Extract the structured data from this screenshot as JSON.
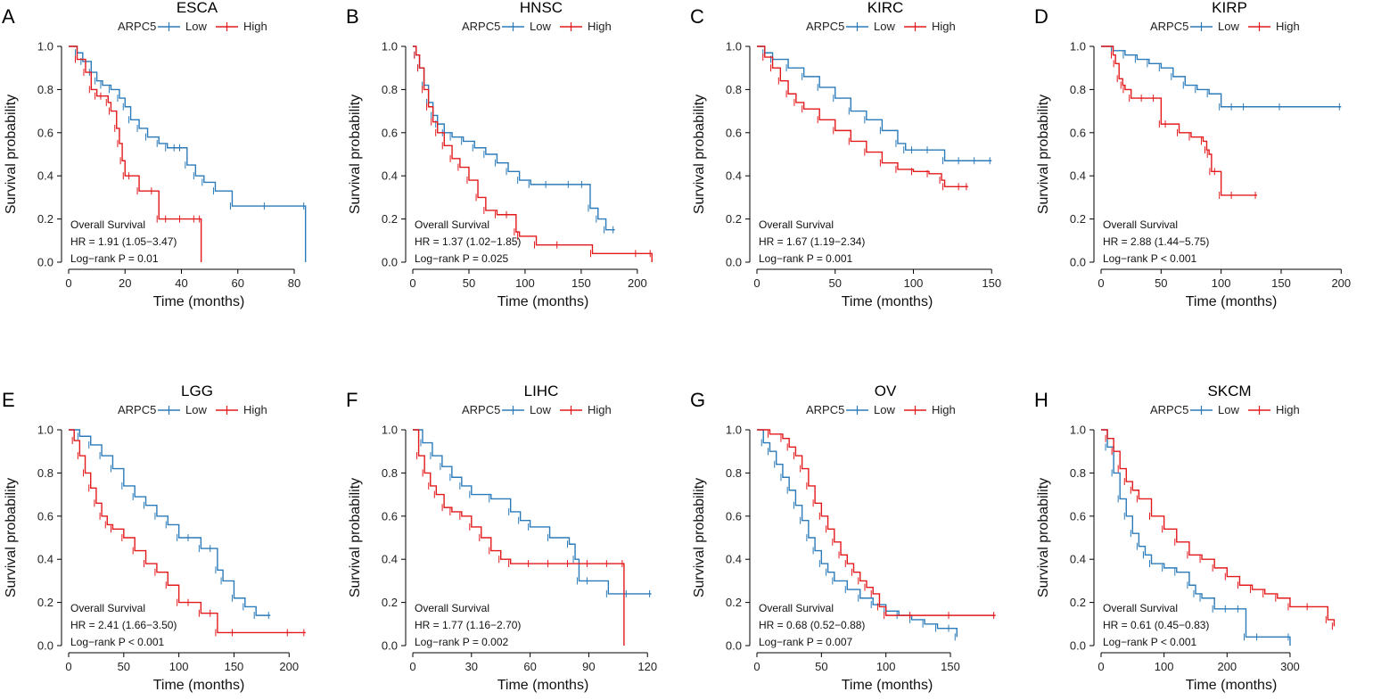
{
  "colors": {
    "low": "#2b7bba",
    "high": "#e31a1c"
  },
  "legend": {
    "gene": "ARPC5",
    "low": "Low",
    "high": "High"
  },
  "annotation_title": "Overall Survival",
  "chart_data": [
    {
      "panel": "A",
      "title": "ESCA",
      "type": "line",
      "xlabel": "Time (months)",
      "ylabel": "Survival probability",
      "xlim": [
        0,
        86
      ],
      "ylim": [
        0,
        1
      ],
      "xticks": [
        "0",
        "20",
        "40",
        "60",
        "80"
      ],
      "xtick_values": [
        0,
        20,
        40,
        60,
        80
      ],
      "yticks": [
        "0.0",
        "0.2",
        "0.4",
        "0.6",
        "0.8",
        "1.0"
      ],
      "ytick_values": [
        0,
        0.2,
        0.4,
        0.6,
        0.8,
        1.0
      ],
      "hr": "HR = 1.91 (1.05−3.47)",
      "pval": "Log−rank P = 0.01",
      "series": [
        {
          "name": "Low",
          "key": "low",
          "x": [
            0,
            3,
            5,
            8,
            10,
            12,
            15,
            18,
            20,
            22,
            25,
            28,
            32,
            35,
            38,
            40,
            42,
            45,
            48,
            52,
            58,
            70,
            84,
            84
          ],
          "y": [
            1.0,
            0.97,
            0.93,
            0.88,
            0.84,
            0.82,
            0.8,
            0.76,
            0.72,
            0.66,
            0.62,
            0.58,
            0.55,
            0.53,
            0.53,
            0.53,
            0.45,
            0.4,
            0.37,
            0.33,
            0.26,
            0.26,
            0.26,
            0.0
          ]
        },
        {
          "name": "High",
          "key": "high",
          "x": [
            0,
            3,
            6,
            8,
            10,
            12,
            14,
            15,
            17,
            18,
            19,
            20,
            22,
            25,
            30,
            32,
            35,
            40,
            45,
            47,
            47
          ],
          "y": [
            1.0,
            0.94,
            0.88,
            0.8,
            0.77,
            0.77,
            0.74,
            0.7,
            0.62,
            0.55,
            0.47,
            0.4,
            0.4,
            0.33,
            0.33,
            0.2,
            0.2,
            0.2,
            0.2,
            0.2,
            0.0
          ]
        }
      ]
    },
    {
      "panel": "B",
      "title": "HNSC",
      "type": "line",
      "xlabel": "Time (months)",
      "ylabel": "Survival probability",
      "xlim": [
        0,
        216
      ],
      "ylim": [
        0,
        1
      ],
      "xticks": [
        "0",
        "50",
        "100",
        "150",
        "200"
      ],
      "xtick_values": [
        0,
        50,
        100,
        150,
        200
      ],
      "yticks": [
        "0.0",
        "0.2",
        "0.4",
        "0.6",
        "0.8",
        "1.0"
      ],
      "ytick_values": [
        0,
        0.2,
        0.4,
        0.6,
        0.8,
        1.0
      ],
      "hr": "HR = 1.37 (1.02−1.85)",
      "pval": "Log−rank P = 0.025",
      "series": [
        {
          "name": "Low",
          "key": "low",
          "x": [
            0,
            3,
            6,
            10,
            14,
            18,
            22,
            28,
            35,
            45,
            55,
            65,
            75,
            85,
            95,
            105,
            120,
            140,
            152,
            158,
            165,
            172,
            180
          ],
          "y": [
            1.0,
            0.96,
            0.9,
            0.82,
            0.74,
            0.68,
            0.64,
            0.6,
            0.58,
            0.56,
            0.53,
            0.5,
            0.46,
            0.42,
            0.38,
            0.36,
            0.36,
            0.36,
            0.36,
            0.25,
            0.2,
            0.15,
            0.15
          ]
        },
        {
          "name": "High",
          "key": "high",
          "x": [
            0,
            3,
            6,
            10,
            14,
            18,
            22,
            28,
            35,
            42,
            50,
            58,
            65,
            75,
            85,
            92,
            95,
            110,
            130,
            160,
            200,
            213,
            213
          ],
          "y": [
            1.0,
            0.96,
            0.9,
            0.8,
            0.72,
            0.65,
            0.6,
            0.54,
            0.48,
            0.44,
            0.38,
            0.3,
            0.24,
            0.22,
            0.22,
            0.14,
            0.12,
            0.08,
            0.08,
            0.04,
            0.04,
            0.04,
            0.0
          ]
        }
      ]
    },
    {
      "panel": "C",
      "title": "KIRC",
      "type": "line",
      "xlabel": "Time (months)",
      "ylabel": "Survival probability",
      "xlim": [
        0,
        155
      ],
      "ylim": [
        0,
        1
      ],
      "xticks": [
        "0",
        "50",
        "100",
        "150"
      ],
      "xtick_values": [
        0,
        50,
        100,
        150
      ],
      "yticks": [
        "0.0",
        "0.2",
        "0.4",
        "0.6",
        "0.8",
        "1.0"
      ],
      "ytick_values": [
        0,
        0.2,
        0.4,
        0.6,
        0.8,
        1.0
      ],
      "hr": "HR = 1.67 (1.19−2.34)",
      "pval": "Log−rank P = 0.001",
      "series": [
        {
          "name": "Low",
          "key": "low",
          "x": [
            0,
            5,
            10,
            20,
            30,
            40,
            50,
            60,
            70,
            80,
            90,
            95,
            100,
            110,
            120,
            130,
            140,
            150
          ],
          "y": [
            1.0,
            0.97,
            0.94,
            0.9,
            0.86,
            0.81,
            0.76,
            0.7,
            0.66,
            0.61,
            0.55,
            0.52,
            0.52,
            0.52,
            0.47,
            0.47,
            0.47,
            0.47
          ]
        },
        {
          "name": "High",
          "key": "high",
          "x": [
            0,
            5,
            10,
            15,
            20,
            25,
            30,
            40,
            50,
            60,
            70,
            80,
            90,
            100,
            110,
            118,
            120,
            130,
            135
          ],
          "y": [
            1.0,
            0.95,
            0.9,
            0.84,
            0.78,
            0.74,
            0.71,
            0.66,
            0.61,
            0.56,
            0.51,
            0.46,
            0.43,
            0.42,
            0.41,
            0.38,
            0.35,
            0.35,
            0.35
          ]
        }
      ]
    },
    {
      "panel": "D",
      "title": "KIRP",
      "type": "line",
      "xlabel": "Time (months)",
      "ylabel": "Survival probability",
      "xlim": [
        0,
        202
      ],
      "ylim": [
        0,
        1
      ],
      "xticks": [
        "0",
        "50",
        "100",
        "150",
        "200"
      ],
      "xtick_values": [
        0,
        50,
        100,
        150,
        200
      ],
      "yticks": [
        "0.0",
        "0.2",
        "0.4",
        "0.6",
        "0.8",
        "1.0"
      ],
      "ytick_values": [
        0,
        0.2,
        0.4,
        0.6,
        0.8,
        1.0
      ],
      "hr": "HR = 2.88 (1.44−5.75)",
      "pval": "Log−rank P < 0.001",
      "series": [
        {
          "name": "Low",
          "key": "low",
          "x": [
            0,
            10,
            20,
            30,
            40,
            50,
            60,
            70,
            80,
            90,
            100,
            110,
            120,
            150,
            200
          ],
          "y": [
            1.0,
            0.98,
            0.96,
            0.94,
            0.92,
            0.9,
            0.86,
            0.82,
            0.8,
            0.78,
            0.72,
            0.72,
            0.72,
            0.72,
            0.72
          ]
        },
        {
          "name": "High",
          "key": "high",
          "x": [
            0,
            10,
            12,
            15,
            18,
            20,
            25,
            35,
            45,
            50,
            55,
            65,
            75,
            85,
            88,
            90,
            92,
            96,
            100,
            110,
            130
          ],
          "y": [
            1.0,
            0.96,
            0.92,
            0.85,
            0.82,
            0.8,
            0.76,
            0.76,
            0.76,
            0.64,
            0.64,
            0.6,
            0.58,
            0.56,
            0.52,
            0.5,
            0.42,
            0.42,
            0.31,
            0.31,
            0.31
          ]
        }
      ]
    },
    {
      "panel": "E",
      "title": "LGG",
      "type": "line",
      "xlabel": "Time (months)",
      "ylabel": "Survival probability",
      "xlim": [
        0,
        220
      ],
      "ylim": [
        0,
        1
      ],
      "xticks": [
        "0",
        "50",
        "100",
        "150",
        "200"
      ],
      "xtick_values": [
        0,
        50,
        100,
        150,
        200
      ],
      "yticks": [
        "0.0",
        "0.2",
        "0.4",
        "0.6",
        "0.8",
        "1.0"
      ],
      "ytick_values": [
        0,
        0.2,
        0.4,
        0.6,
        0.8,
        1.0
      ],
      "hr": "HR = 2.41 (1.66−3.50)",
      "pval": "Log−rank P < 0.001",
      "series": [
        {
          "name": "Low",
          "key": "low",
          "x": [
            0,
            10,
            20,
            30,
            40,
            50,
            60,
            70,
            80,
            90,
            100,
            110,
            120,
            130,
            135,
            140,
            150,
            160,
            170,
            183
          ],
          "y": [
            1.0,
            0.97,
            0.93,
            0.88,
            0.82,
            0.74,
            0.69,
            0.65,
            0.6,
            0.56,
            0.5,
            0.5,
            0.45,
            0.45,
            0.35,
            0.3,
            0.22,
            0.18,
            0.14,
            0.14
          ]
        },
        {
          "name": "High",
          "key": "high",
          "x": [
            0,
            5,
            10,
            15,
            20,
            25,
            30,
            35,
            40,
            50,
            60,
            70,
            80,
            90,
            100,
            110,
            120,
            130,
            135,
            150,
            200,
            215
          ],
          "y": [
            1.0,
            0.95,
            0.88,
            0.8,
            0.73,
            0.66,
            0.6,
            0.56,
            0.54,
            0.5,
            0.44,
            0.38,
            0.34,
            0.28,
            0.2,
            0.2,
            0.15,
            0.15,
            0.06,
            0.06,
            0.06,
            0.06
          ]
        }
      ]
    },
    {
      "panel": "F",
      "title": "LIHC",
      "type": "line",
      "xlabel": "Time (months)",
      "ylabel": "Survival probability",
      "xlim": [
        0,
        124
      ],
      "ylim": [
        0,
        1
      ],
      "xticks": [
        "0",
        "30",
        "60",
        "90",
        "120"
      ],
      "xtick_values": [
        0,
        30,
        60,
        90,
        120
      ],
      "yticks": [
        "0.0",
        "0.2",
        "0.4",
        "0.6",
        "0.8",
        "1.0"
      ],
      "ytick_values": [
        0,
        0.2,
        0.4,
        0.6,
        0.8,
        1.0
      ],
      "hr": "HR = 1.77 (1.16−2.70)",
      "pval": "Log−rank P = 0.002",
      "series": [
        {
          "name": "Low",
          "key": "low",
          "x": [
            0,
            5,
            10,
            15,
            20,
            25,
            30,
            40,
            50,
            55,
            60,
            70,
            80,
            83,
            85,
            90,
            100,
            110,
            122
          ],
          "y": [
            1.0,
            0.94,
            0.88,
            0.83,
            0.78,
            0.74,
            0.7,
            0.68,
            0.62,
            0.58,
            0.55,
            0.5,
            0.47,
            0.4,
            0.3,
            0.3,
            0.24,
            0.24,
            0.24
          ]
        },
        {
          "name": "High",
          "key": "high",
          "x": [
            0,
            3,
            6,
            9,
            12,
            16,
            20,
            25,
            30,
            35,
            40,
            45,
            50,
            60,
            70,
            80,
            90,
            100,
            108,
            108
          ],
          "y": [
            1.0,
            0.88,
            0.8,
            0.74,
            0.7,
            0.64,
            0.62,
            0.6,
            0.55,
            0.5,
            0.44,
            0.4,
            0.38,
            0.38,
            0.38,
            0.38,
            0.38,
            0.38,
            0.38,
            0.0
          ]
        }
      ]
    },
    {
      "panel": "G",
      "title": "OV",
      "type": "line",
      "xlabel": "Time (months)",
      "ylabel": "Survival probability",
      "xlim": [
        0,
        188
      ],
      "ylim": [
        0,
        1
      ],
      "xticks": [
        "0",
        "50",
        "100",
        "150"
      ],
      "xtick_values": [
        0,
        50,
        100,
        150
      ],
      "yticks": [
        "0.0",
        "0.2",
        "0.4",
        "0.6",
        "0.8",
        "1.0"
      ],
      "ytick_values": [
        0,
        0.2,
        0.4,
        0.6,
        0.8,
        1.0
      ],
      "hr": "HR = 0.68 (0.52−0.88)",
      "pval": "Log−rank P = 0.007",
      "series": [
        {
          "name": "Low",
          "key": "low",
          "x": [
            0,
            5,
            10,
            15,
            20,
            25,
            30,
            35,
            40,
            45,
            50,
            55,
            60,
            70,
            80,
            90,
            100,
            110,
            120,
            130,
            140,
            150,
            155
          ],
          "y": [
            1.0,
            0.94,
            0.9,
            0.84,
            0.78,
            0.72,
            0.65,
            0.58,
            0.5,
            0.44,
            0.38,
            0.34,
            0.3,
            0.26,
            0.22,
            0.19,
            0.16,
            0.14,
            0.12,
            0.1,
            0.08,
            0.08,
            0.04
          ]
        },
        {
          "name": "High",
          "key": "high",
          "x": [
            0,
            10,
            20,
            25,
            30,
            35,
            40,
            45,
            50,
            55,
            60,
            65,
            70,
            75,
            80,
            85,
            90,
            95,
            100,
            120,
            150,
            185
          ],
          "y": [
            1.0,
            0.98,
            0.96,
            0.92,
            0.88,
            0.82,
            0.74,
            0.66,
            0.6,
            0.54,
            0.48,
            0.42,
            0.38,
            0.34,
            0.3,
            0.27,
            0.24,
            0.18,
            0.14,
            0.14,
            0.14,
            0.14
          ]
        }
      ]
    },
    {
      "panel": "H",
      "title": "SKCM",
      "type": "line",
      "xlabel": "Time (months)",
      "ylabel": "Survival probability",
      "xlim": [
        0,
        385
      ],
      "ylim": [
        0,
        1
      ],
      "xticks": [
        "0",
        "100",
        "200",
        "300"
      ],
      "xtick_values": [
        0,
        100,
        200,
        300
      ],
      "yticks": [
        "0.0",
        "0.2",
        "0.4",
        "0.6",
        "0.8",
        "1.0"
      ],
      "ytick_values": [
        0,
        0.2,
        0.4,
        0.6,
        0.8,
        1.0
      ],
      "hr": "HR = 0.61 (0.45−0.83)",
      "pval": "Log−rank P < 0.001",
      "series": [
        {
          "name": "Low",
          "key": "low",
          "x": [
            0,
            10,
            20,
            30,
            40,
            50,
            60,
            70,
            80,
            100,
            120,
            140,
            150,
            160,
            180,
            200,
            220,
            230,
            250,
            300,
            300
          ],
          "y": [
            1.0,
            0.92,
            0.8,
            0.68,
            0.6,
            0.52,
            0.46,
            0.42,
            0.38,
            0.36,
            0.34,
            0.28,
            0.24,
            0.22,
            0.17,
            0.17,
            0.17,
            0.04,
            0.04,
            0.04,
            0.0
          ]
        },
        {
          "name": "High",
          "key": "high",
          "x": [
            0,
            10,
            20,
            30,
            40,
            50,
            60,
            80,
            100,
            120,
            140,
            160,
            180,
            200,
            220,
            240,
            260,
            280,
            300,
            330,
            360,
            370
          ],
          "y": [
            1.0,
            0.96,
            0.9,
            0.82,
            0.76,
            0.72,
            0.68,
            0.6,
            0.54,
            0.48,
            0.42,
            0.4,
            0.36,
            0.32,
            0.28,
            0.26,
            0.24,
            0.22,
            0.18,
            0.18,
            0.12,
            0.09
          ]
        }
      ]
    }
  ]
}
